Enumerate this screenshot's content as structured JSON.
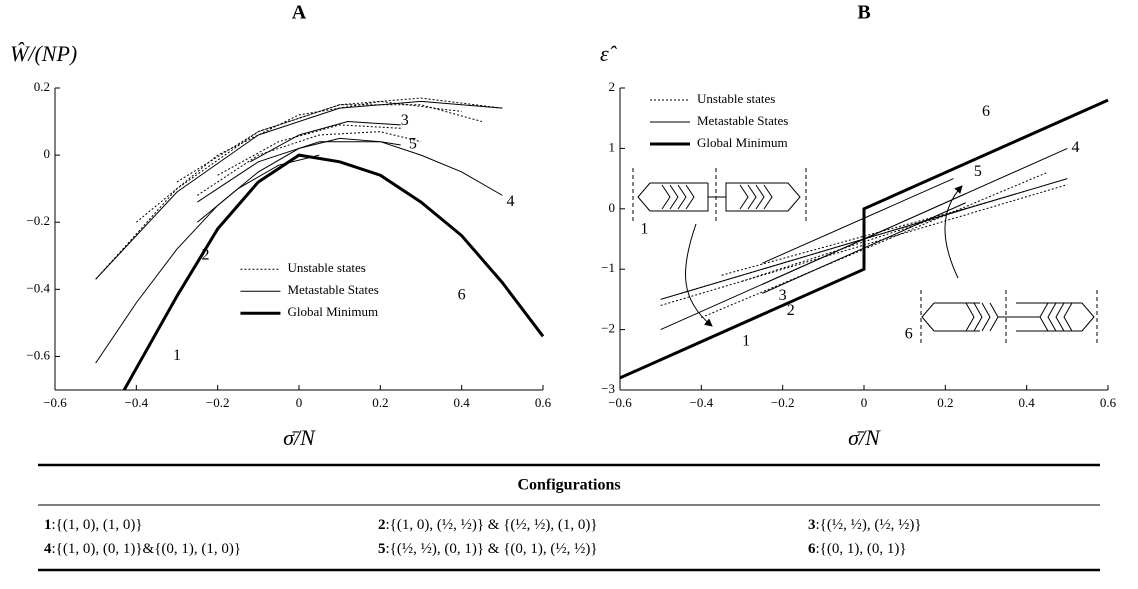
{
  "chart_data": [
    {
      "type": "line",
      "title": "A",
      "ylabel": "Ŵ/(NP)",
      "xlabel": "σ̄/N",
      "xlim": [
        -0.6,
        0.6
      ],
      "ylim": [
        -0.7,
        0.2
      ],
      "xticks": [
        {
          "value": -0.6,
          "label": "−0.6"
        },
        {
          "value": -0.4,
          "label": "−0.4"
        },
        {
          "value": -0.2,
          "label": "−0.2"
        },
        0,
        0.2,
        0.4,
        0.6
      ],
      "yticks": [
        0.2,
        0,
        {
          "value": -0.2,
          "label": "−0.2"
        },
        {
          "value": -0.4,
          "label": "−0.4"
        },
        {
          "value": -0.6,
          "label": "−0.6"
        }
      ],
      "legend_loc": "lower center",
      "legend": [
        {
          "name": "Unstable states",
          "style": "dotted"
        },
        {
          "name": "Metastable States",
          "style": "solid"
        },
        {
          "name": "Global Minimum",
          "style": "thick"
        }
      ],
      "series": [
        {
          "style": "dotted",
          "x": [
            -0.5,
            -0.3,
            -0.1,
            0.1,
            0.3,
            0.5
          ],
          "values": [
            -0.37,
            -0.1,
            0.07,
            0.15,
            0.17,
            0.14
          ]
        },
        {
          "style": "dotted",
          "x": [
            -0.4,
            -0.2,
            0,
            0.2,
            0.4
          ],
          "values": [
            -0.2,
            0.0,
            0.12,
            0.16,
            0.13
          ]
        },
        {
          "style": "dotted",
          "x": [
            -0.3,
            -0.1,
            0.1,
            0.3,
            0.45
          ],
          "values": [
            -0.08,
            0.07,
            0.15,
            0.15,
            0.1
          ]
        },
        {
          "style": "dotted",
          "x": [
            -0.25,
            -0.1,
            0.05,
            0.2,
            0.3
          ],
          "values": [
            -0.12,
            0.0,
            0.06,
            0.07,
            0.04
          ]
        },
        {
          "style": "dotted",
          "x": [
            -0.2,
            -0.05,
            0.1,
            0.25
          ],
          "values": [
            -0.06,
            0.04,
            0.09,
            0.08
          ]
        },
        {
          "style": "solid",
          "x": [
            -0.5,
            -0.3,
            -0.1,
            0.1,
            0.3,
            0.5
          ],
          "values": [
            -0.37,
            -0.11,
            0.06,
            0.14,
            0.16,
            0.14
          ]
        },
        {
          "style": "solid",
          "x": [
            -0.5,
            -0.4,
            -0.3,
            -0.2,
            -0.1,
            0,
            0.1,
            0.2,
            0.3,
            0.4,
            0.5
          ],
          "values": [
            -0.62,
            -0.44,
            -0.28,
            -0.15,
            -0.05,
            0.02,
            0.05,
            0.04,
            0.0,
            -0.05,
            -0.12
          ]
        },
        {
          "style": "solid",
          "x": [
            -0.12,
            0,
            0.12,
            0.25
          ],
          "values": [
            -0.02,
            0.06,
            0.1,
            0.09
          ]
        },
        {
          "style": "solid",
          "x": [
            -0.25,
            -0.1,
            0.05,
            0.2,
            0.25
          ],
          "values": [
            -0.14,
            -0.02,
            0.04,
            0.04,
            0.03
          ]
        },
        {
          "style": "solid",
          "x": [
            -0.25,
            -0.15,
            -0.05,
            0.05
          ],
          "values": [
            -0.2,
            -0.1,
            -0.03,
            0.0
          ]
        },
        {
          "style": "thick",
          "x": [
            -0.43,
            -0.3,
            -0.2,
            -0.1,
            0,
            0.1,
            0.2,
            0.3,
            0.4,
            0.5,
            0.6
          ],
          "values": [
            -0.7,
            -0.42,
            -0.22,
            -0.08,
            0,
            -0.02,
            -0.06,
            -0.14,
            -0.24,
            -0.38,
            -0.54
          ]
        }
      ],
      "annotations": [
        {
          "text": "3",
          "x": 0.26,
          "y": 0.1
        },
        {
          "text": "5",
          "x": 0.28,
          "y": 0.03
        },
        {
          "text": "4",
          "x": 0.52,
          "y": -0.14
        },
        {
          "text": "2",
          "x": -0.23,
          "y": -0.3
        },
        {
          "text": "6",
          "x": 0.4,
          "y": -0.42
        },
        {
          "text": "1",
          "x": -0.3,
          "y": -0.6
        }
      ]
    },
    {
      "type": "line",
      "title": "B",
      "ylabel": "ε̂",
      "xlabel": "σ̄/N",
      "xlim": [
        -0.6,
        0.6
      ],
      "ylim": [
        -3,
        2
      ],
      "xticks": [
        {
          "value": -0.6,
          "label": "−0.6"
        },
        {
          "value": -0.4,
          "label": "−0.4"
        },
        {
          "value": -0.2,
          "label": "−0.2"
        },
        0,
        0.2,
        0.4,
        0.6
      ],
      "yticks": [
        2,
        1,
        0,
        {
          "value": -1,
          "label": "−1"
        },
        {
          "value": -2,
          "label": "−2"
        },
        {
          "value": -3,
          "label": "−3"
        }
      ],
      "legend_loc": "upper left",
      "legend": [
        {
          "name": "Unstable states",
          "style": "dotted"
        },
        {
          "name": "Metastable States",
          "style": "solid"
        },
        {
          "name": "Global Minimum",
          "style": "thick"
        }
      ],
      "series": [
        {
          "style": "dotted",
          "x": [
            -0.5,
            0.5
          ],
          "values": [
            -1.6,
            0.4
          ]
        },
        {
          "style": "dotted",
          "x": [
            -0.45,
            0.4
          ],
          "values": [
            -1.4,
            0.3
          ]
        },
        {
          "style": "dotted",
          "x": [
            -0.35,
            0.3
          ],
          "values": [
            -1.1,
            0.1
          ]
        },
        {
          "style": "dotted",
          "x": [
            -0.3,
            0.25
          ],
          "values": [
            -1.2,
            0.0
          ]
        },
        {
          "style": "dotted",
          "x": [
            -0.4,
            0.45
          ],
          "values": [
            -1.8,
            0.6
          ]
        },
        {
          "style": "solid",
          "x": [
            -0.5,
            0.5
          ],
          "values": [
            -1.5,
            0.5
          ]
        },
        {
          "style": "solid",
          "x": [
            -0.5,
            0.5
          ],
          "values": [
            -2,
            1
          ]
        },
        {
          "style": "solid",
          "x": [
            -0.25,
            0.25
          ],
          "values": [
            -1.25,
            0.25
          ]
        },
        {
          "style": "solid",
          "x": [
            -0.25,
            0.22
          ],
          "values": [
            -0.9,
            0.5
          ]
        },
        {
          "style": "solid",
          "x": [
            -0.25,
            0.25
          ],
          "values": [
            -1.4,
            0.1
          ]
        },
        {
          "style": "thick",
          "x": [
            -0.6,
            0,
            0,
            0.6
          ],
          "values": [
            -2.8,
            -1,
            0,
            1.8
          ]
        }
      ],
      "annotations": [
        {
          "text": "6",
          "x": 0.3,
          "y": 1.6
        },
        {
          "text": "4",
          "x": 0.52,
          "y": 1.0
        },
        {
          "text": "5",
          "x": 0.28,
          "y": 0.6
        },
        {
          "text": "3",
          "x": -0.2,
          "y": -1.45
        },
        {
          "text": "2",
          "x": -0.18,
          "y": -1.7
        },
        {
          "text": "1",
          "x": -0.29,
          "y": -2.2
        },
        {
          "text": "1",
          "x": -0.54,
          "y": -0.35
        },
        {
          "text": "6",
          "x": 0.11,
          "y": -2.09
        }
      ]
    }
  ],
  "table": {
    "header": "Configurations",
    "rows": [
      [
        {
          "label": "1",
          "config": ":{(1, 0), (1, 0)}"
        },
        {
          "label": "2",
          "config": ":{(1, 0), (½, ½)} & {(½, ½), (1, 0)}"
        },
        {
          "label": "3",
          "config": ":{(½, ½), (½, ½)}"
        }
      ],
      [
        {
          "label": "4",
          "config": ":{(1, 0), (0, 1)}&{(0, 1), (1, 0)}"
        },
        {
          "label": "5",
          "config": ":{(½, ½), (0, 1)} & {(0, 1), (½, ½)}"
        },
        {
          "label": "6",
          "config": ":{(0, 1), (0, 1)}"
        }
      ]
    ]
  }
}
